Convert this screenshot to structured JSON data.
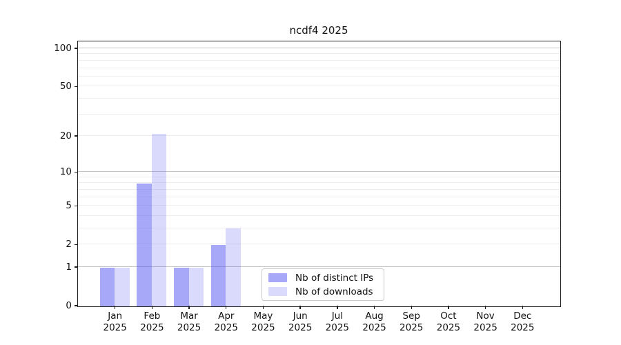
{
  "chart_data": {
    "type": "bar",
    "title": "ncdf4 2025",
    "categories": [
      "Jan",
      "Feb",
      "Mar",
      "Apr",
      "May",
      "Jun",
      "Jul",
      "Aug",
      "Sep",
      "Oct",
      "Nov",
      "Dec"
    ],
    "category_year": "2025",
    "series": [
      {
        "name": "Nb of distinct IPs",
        "color_hex": "#a9a9f8",
        "color_rgba": "rgba(82,82,242,0.50)",
        "values": [
          1,
          8,
          1,
          2,
          0,
          0,
          0,
          0,
          0,
          0,
          0,
          0
        ]
      },
      {
        "name": "Nb of downloads",
        "color_hex": "#dadafc",
        "color_rgba": "rgba(82,82,242,0.21)",
        "values": [
          1,
          21,
          1,
          3,
          0,
          0,
          0,
          0,
          0,
          0,
          0,
          0
        ]
      }
    ],
    "yaxis": {
      "scale": "log1p",
      "tick_labels": [
        "0",
        "1",
        "2",
        "5",
        "10",
        "20",
        "50",
        "100"
      ],
      "tick_values": [
        0,
        1,
        2,
        5,
        10,
        20,
        50,
        100
      ],
      "major_gridlines": [
        1,
        10,
        100
      ],
      "minor_gridlines": [
        2,
        3,
        4,
        5,
        6,
        7,
        8,
        9,
        20,
        30,
        40,
        50,
        60,
        70,
        80,
        90
      ],
      "ylim": [
        0,
        113.4
      ]
    },
    "xlabel": "",
    "ylabel": "",
    "legend_position": "lower center",
    "grid": true
  },
  "colors": {
    "background": "#ffffff",
    "spine": "#1f1f1f",
    "text": "#111111",
    "major_grid": "#c3c3c3",
    "minor_grid": "#ededed",
    "legend_border": "#c9c9c9"
  }
}
